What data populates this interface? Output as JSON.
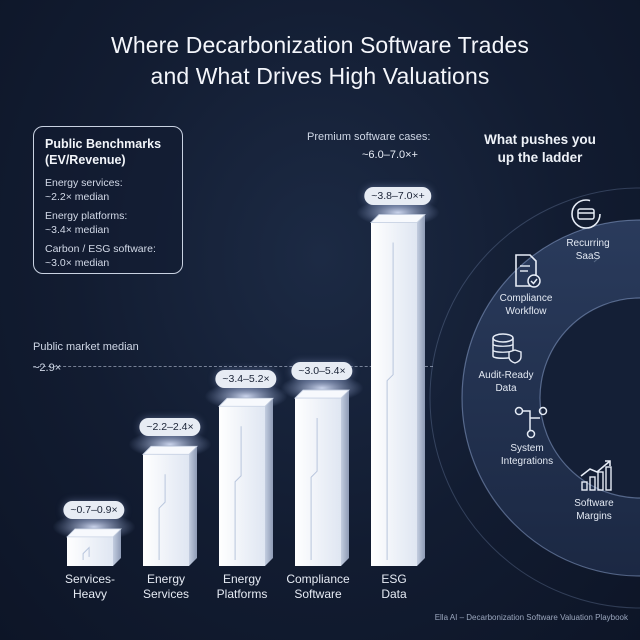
{
  "title_line1": "Where Decarbonization Software Trades",
  "title_line2": "and What Drives High Valuations",
  "benchmarks": {
    "title_line1": "Public Benchmarks",
    "title_line2": "(EV/Revenue)",
    "items": [
      {
        "line1": "Energy services:",
        "line2": "~2.2× median"
      },
      {
        "line1": "Energy platforms:",
        "line2": "~3.4× median"
      },
      {
        "line1": "Carbon / ESG software:",
        "line2": "~3.0× median"
      }
    ]
  },
  "median": {
    "label": "Public market median",
    "value": "~2.9×"
  },
  "premium": {
    "label": "Premium software cases:",
    "value": "~6.0–7.0×+"
  },
  "chart_data": {
    "type": "bar",
    "title": "Where Decarbonization Software Trades and What Drives High Valuations",
    "categories": [
      {
        "line1": "Services-",
        "line2": "Heavy"
      },
      {
        "line1": "Energy",
        "line2": "Services"
      },
      {
        "line1": "Energy",
        "line2": "Platforms"
      },
      {
        "line1": "Compliance",
        "line2": "Software"
      },
      {
        "line1": "ESG",
        "line2": "Data"
      }
    ],
    "ranges": [
      [
        0.7,
        0.9
      ],
      [
        2.2,
        2.4
      ],
      [
        3.4,
        5.2
      ],
      [
        3.0,
        5.4
      ],
      [
        3.8,
        7.0
      ]
    ],
    "range_labels": [
      "~0.7–0.9×",
      "~2.2–2.4×",
      "~3.4–5.2×",
      "~3.0–5.4×",
      "~3.8–7.0×+"
    ],
    "reference_line": {
      "label": "Public market median",
      "value": 2.9
    },
    "unit": "EV/Revenue multiple",
    "legend": "none",
    "grid": false
  },
  "ladder": {
    "title_line1": "What pushes you",
    "title_line2": "up the ladder",
    "drivers": [
      {
        "line1": "Recurring",
        "line2": "SaaS",
        "icon": "recurring-payment-icon"
      },
      {
        "line1": "Compliance",
        "line2": "Workflow",
        "icon": "document-check-icon"
      },
      {
        "line1": "Audit-Ready",
        "line2": "Data",
        "icon": "database-shield-icon"
      },
      {
        "line1": "System",
        "line2": "Integrations",
        "icon": "integration-nodes-icon"
      },
      {
        "line1": "Software",
        "line2": "Margins",
        "icon": "rising-chart-icon"
      }
    ]
  },
  "footer": "Ella AI – Decarbonization Software Valuation Playbook",
  "colors": {
    "background": "#121c31",
    "bar_face": "#f2f5fb",
    "bar_side": "#aebad0",
    "pill": "#e7ecf4"
  }
}
